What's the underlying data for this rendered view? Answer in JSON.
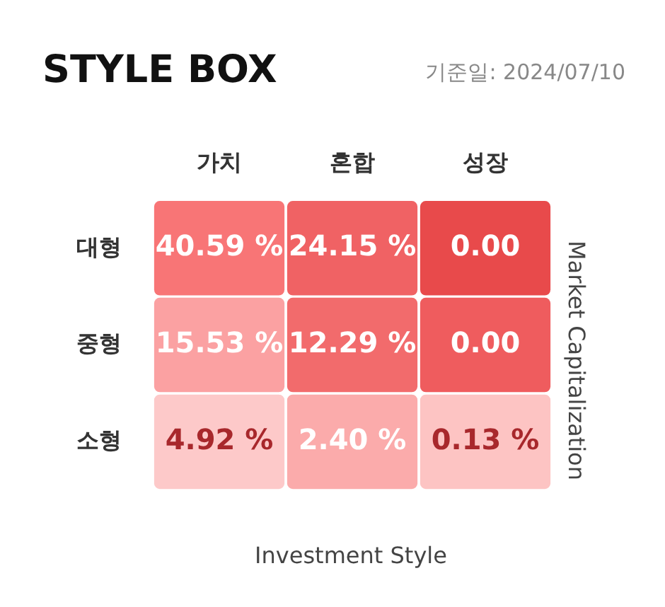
{
  "chart_data": {
    "type": "heatmap",
    "title": "STYLE BOX",
    "subtitle": "기준일: 2024/07/10",
    "xlabel": "Investment Style",
    "ylabel": "Market Capitalization",
    "categories": [
      "가치",
      "혼합",
      "성장"
    ],
    "y_categories": [
      "대형",
      "중형",
      "소형"
    ],
    "cells": [
      [
        40.59,
        24.15,
        0.0
      ],
      [
        15.53,
        12.29,
        0.0
      ],
      [
        4.92,
        2.4,
        0.13
      ]
    ],
    "cell_labels": [
      [
        "40.59 %",
        "24.15 %",
        "0.00"
      ],
      [
        "15.53 %",
        "12.29 %",
        "0.00"
      ],
      [
        "4.92 %",
        "2.40 %",
        "0.13 %"
      ]
    ],
    "colors": [
      [
        "#f87576",
        "#f06264",
        "#e84a4b"
      ],
      [
        "#fba1a2",
        "#f26b6c",
        "#ef5c5e"
      ],
      [
        "#fdc9c9",
        "#fbabab",
        "#fdc4c3"
      ]
    ]
  }
}
